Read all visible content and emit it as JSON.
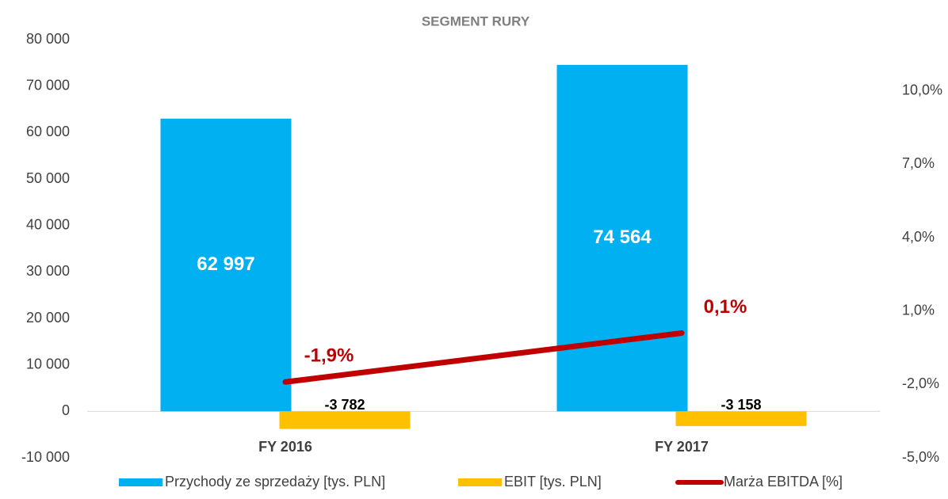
{
  "chart_data": {
    "type": "bar",
    "title": "SEGMENT RURY",
    "categories": [
      "FY 2016",
      "FY 2017"
    ],
    "series": [
      {
        "name": "Przychody ze sprzedaży [tys. PLN]",
        "color": "#00b0f0",
        "values": [
          62997,
          74564
        ],
        "value_labels": [
          "62 997",
          "74 564"
        ]
      },
      {
        "name": "EBIT [tys. PLN]",
        "color": "#ffc000",
        "values": [
          -3782,
          -3158
        ],
        "value_labels": [
          "-3 782",
          "-3 158"
        ]
      },
      {
        "name": "Marża EBITDA [%]",
        "color": "#c00000",
        "type": "line",
        "axis": "y2",
        "values": [
          -1.9,
          0.1
        ],
        "value_labels": [
          "-1,9%",
          "0,1%"
        ]
      }
    ],
    "ylim": [
      -10000,
      80000
    ],
    "yticks": [
      {
        "value": -10000,
        "label": "-10 000"
      },
      0,
      {
        "value": 10000,
        "label": "10 000"
      },
      {
        "value": 20000,
        "label": "20 000"
      },
      {
        "value": 30000,
        "label": "30 000"
      },
      {
        "value": 40000,
        "label": "40 000"
      },
      {
        "value": 50000,
        "label": "50 000"
      },
      {
        "value": 60000,
        "label": "60 000"
      },
      {
        "value": 70000,
        "label": "70 000"
      },
      {
        "value": 80000,
        "label": "80 000"
      }
    ],
    "y2lim": [
      -5,
      12.1
    ],
    "y2ticks": [
      {
        "value": -5,
        "label": "-5,0%"
      },
      {
        "value": -2,
        "label": "-2,0%"
      },
      {
        "value": 1,
        "label": "1,0%"
      },
      {
        "value": 4,
        "label": "4,0%"
      },
      {
        "value": 7,
        "label": "7,0%"
      },
      {
        "value": 10,
        "label": "10,0%"
      }
    ],
    "grid": false,
    "legend": "bottom"
  }
}
